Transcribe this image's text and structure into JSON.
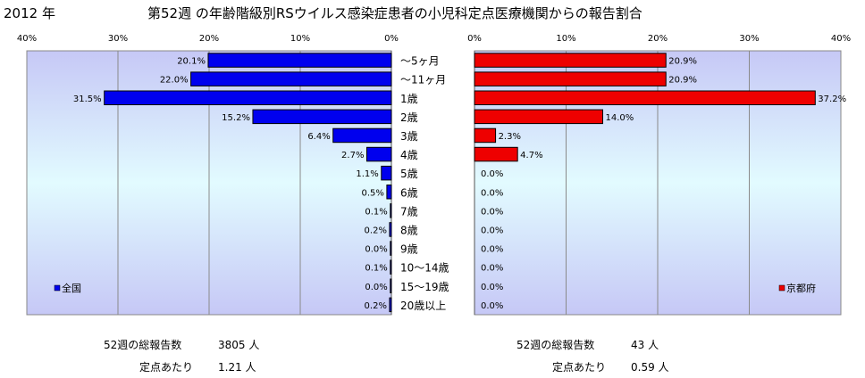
{
  "header": {
    "year": "2012 年",
    "title": "第52週 の年齢階級別RSウイルス感染症患者の小児科定点医療機関からの報告割合"
  },
  "chart_data": [
    {
      "type": "bar",
      "orientation": "horizontal",
      "direction": "right-to-left",
      "xlim": [
        0,
        40
      ],
      "x_ticks": [
        "40%",
        "30%",
        "20%",
        "10%",
        "0%"
      ],
      "categories": [
        "～5ヶ月",
        "～11ヶ月",
        "1歳",
        "2歳",
        "3歳",
        "4歳",
        "5歳",
        "6歳",
        "7歳",
        "8歳",
        "9歳",
        "10～14歳",
        "15～19歳",
        "20歳以上"
      ],
      "series": [
        {
          "name": "全国",
          "color": "#0000ee",
          "values": [
            20.1,
            22.0,
            31.5,
            15.2,
            6.4,
            2.7,
            1.1,
            0.5,
            0.1,
            0.2,
            0.0,
            0.1,
            0.0,
            0.2
          ],
          "labels": [
            "20.1%",
            "22.0%",
            "31.5%",
            "15.2%",
            "6.4%",
            "2.7%",
            "1.1%",
            "0.5%",
            "0.1%",
            "0.2%",
            "0.0%",
            "0.1%",
            "0.0%",
            "0.2%"
          ]
        }
      ],
      "grid": true,
      "legend": "bottom-left"
    },
    {
      "type": "bar",
      "orientation": "horizontal",
      "direction": "left-to-right",
      "xlim": [
        0,
        40
      ],
      "x_ticks": [
        "0%",
        "10%",
        "20%",
        "30%",
        "40%"
      ],
      "categories": [
        "～5ヶ月",
        "～11ヶ月",
        "1歳",
        "2歳",
        "3歳",
        "4歳",
        "5歳",
        "6歳",
        "7歳",
        "8歳",
        "9歳",
        "10～14歳",
        "15～19歳",
        "20歳以上"
      ],
      "series": [
        {
          "name": "京都府",
          "color": "#ee0000",
          "values": [
            20.9,
            20.9,
            37.2,
            14.0,
            2.3,
            4.7,
            0.0,
            0.0,
            0.0,
            0.0,
            0.0,
            0.0,
            0.0,
            0.0
          ],
          "labels": [
            "20.9%",
            "20.9%",
            "37.2%",
            "14.0%",
            "2.3%",
            "4.7%",
            "0.0%",
            "0.0%",
            "0.0%",
            "0.0%",
            "0.0%",
            "0.0%",
            "0.0%",
            "0.0%"
          ]
        }
      ],
      "grid": true,
      "legend": "bottom-right"
    }
  ],
  "stats": {
    "national": {
      "total_label": "52週の総報告数",
      "total_value": "3805 人",
      "per_label": "定点あたり",
      "per_value": "1.21 人"
    },
    "kyoto": {
      "total_label": "52週の総報告数",
      "total_value": "43 人",
      "per_label": "定点あたり",
      "per_value": "0.59 人"
    }
  }
}
